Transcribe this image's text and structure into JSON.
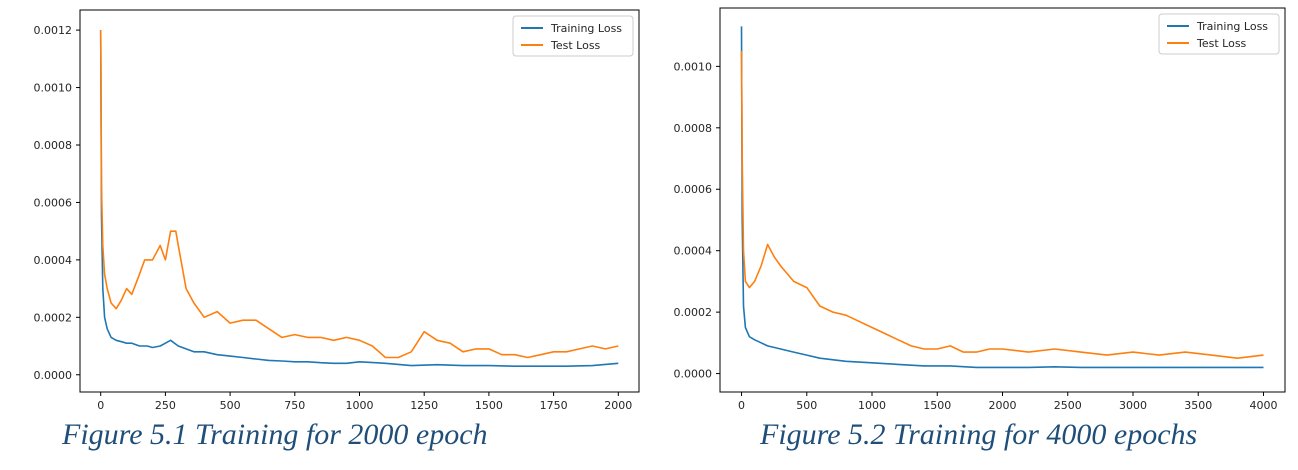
{
  "chart_data": [
    {
      "type": "line",
      "title": "",
      "xlabel": "",
      "ylabel": "",
      "xlim": [
        -80,
        2080
      ],
      "ylim": [
        -6e-05,
        0.00127
      ],
      "xticks": [
        0,
        250,
        500,
        750,
        1000,
        1250,
        1500,
        1750,
        2000
      ],
      "xtick_labels": [
        "0",
        "250",
        "500",
        "750",
        "1000",
        "1250",
        "1500",
        "1750",
        "2000"
      ],
      "yticks": [
        0,
        0.0002,
        0.0004,
        0.0006,
        0.0008,
        0.001,
        0.0012
      ],
      "ytick_labels": [
        "0.0000",
        "0.0002",
        "0.0004",
        "0.0006",
        "0.0008",
        "0.0010",
        "0.0012"
      ],
      "grid": false,
      "legend_position": "top-right",
      "series": [
        {
          "name": "Training Loss",
          "color": "#1f77b4",
          "x": [
            0,
            3,
            8,
            15,
            25,
            40,
            60,
            80,
            100,
            120,
            150,
            180,
            200,
            230,
            250,
            270,
            300,
            330,
            360,
            400,
            450,
            500,
            550,
            600,
            650,
            700,
            750,
            800,
            850,
            900,
            950,
            1000,
            1100,
            1200,
            1300,
            1400,
            1500,
            1600,
            1700,
            1800,
            1900,
            2000
          ],
          "y": [
            0.0012,
            0.00055,
            0.0003,
            0.0002,
            0.00016,
            0.00013,
            0.00012,
            0.000115,
            0.00011,
            0.00011,
            0.0001,
            0.0001,
            9.5e-05,
            0.0001,
            0.00011,
            0.00012,
            0.0001,
            9e-05,
            8e-05,
            8e-05,
            7e-05,
            6.5e-05,
            6e-05,
            5.5e-05,
            5e-05,
            4.8e-05,
            4.5e-05,
            4.5e-05,
            4.2e-05,
            4e-05,
            4e-05,
            4.5e-05,
            4e-05,
            3.2e-05,
            3.5e-05,
            3.2e-05,
            3.2e-05,
            3e-05,
            3e-05,
            3e-05,
            3.2e-05,
            4e-05
          ]
        },
        {
          "name": "Test Loss",
          "color": "#ff7f0e",
          "x": [
            0,
            3,
            8,
            15,
            25,
            40,
            60,
            80,
            100,
            120,
            150,
            170,
            200,
            230,
            250,
            270,
            290,
            300,
            330,
            360,
            400,
            450,
            500,
            550,
            600,
            650,
            700,
            750,
            800,
            850,
            900,
            950,
            1000,
            1050,
            1100,
            1150,
            1200,
            1250,
            1300,
            1350,
            1400,
            1450,
            1500,
            1550,
            1600,
            1650,
            1700,
            1750,
            1800,
            1850,
            1900,
            1950,
            2000
          ],
          "y": [
            0.0012,
            0.00065,
            0.00045,
            0.00035,
            0.0003,
            0.00025,
            0.00023,
            0.00026,
            0.0003,
            0.00028,
            0.00035,
            0.0004,
            0.0004,
            0.00045,
            0.0004,
            0.0005,
            0.0005,
            0.00045,
            0.0003,
            0.00025,
            0.0002,
            0.00022,
            0.00018,
            0.00019,
            0.00019,
            0.00016,
            0.00013,
            0.00014,
            0.00013,
            0.00013,
            0.00012,
            0.00013,
            0.00012,
            0.0001,
            6e-05,
            6e-05,
            8e-05,
            0.00015,
            0.00012,
            0.00011,
            8e-05,
            9e-05,
            9e-05,
            7e-05,
            7e-05,
            6e-05,
            7e-05,
            8e-05,
            8e-05,
            9e-05,
            0.0001,
            9e-05,
            0.0001
          ]
        }
      ]
    },
    {
      "type": "line",
      "title": "",
      "xlabel": "",
      "ylabel": "",
      "xlim": [
        -165,
        4165
      ],
      "ylim": [
        -6e-05,
        0.00119
      ],
      "xticks": [
        0,
        500,
        1000,
        1500,
        2000,
        2500,
        3000,
        3500,
        4000
      ],
      "xtick_labels": [
        "0",
        "500",
        "1000",
        "1500",
        "2000",
        "2500",
        "3000",
        "3500",
        "4000"
      ],
      "yticks": [
        0,
        0.0002,
        0.0004,
        0.0006,
        0.0008,
        0.001
      ],
      "ytick_labels": [
        "0.0000",
        "0.0002",
        "0.0004",
        "0.0006",
        "0.0008",
        "0.0010"
      ],
      "grid": false,
      "legend_position": "top-right",
      "series": [
        {
          "name": "Training Loss",
          "color": "#1f77b4",
          "x": [
            0,
            5,
            15,
            30,
            60,
            100,
            150,
            200,
            300,
            400,
            500,
            600,
            800,
            1000,
            1200,
            1400,
            1600,
            1800,
            2000,
            2200,
            2400,
            2600,
            2800,
            3000,
            3200,
            3400,
            3600,
            3800,
            4000
          ],
          "y": [
            0.00113,
            0.0005,
            0.00022,
            0.00015,
            0.00012,
            0.00011,
            0.0001,
            9e-05,
            8e-05,
            7e-05,
            6e-05,
            5e-05,
            4e-05,
            3.5e-05,
            3e-05,
            2.5e-05,
            2.5e-05,
            2e-05,
            2e-05,
            2e-05,
            2.2e-05,
            2e-05,
            2e-05,
            2e-05,
            2e-05,
            2e-05,
            2e-05,
            2e-05,
            2e-05
          ]
        },
        {
          "name": "Test Loss",
          "color": "#ff7f0e",
          "x": [
            0,
            5,
            15,
            30,
            60,
            100,
            150,
            200,
            250,
            300,
            400,
            500,
            600,
            700,
            800,
            900,
            1000,
            1100,
            1200,
            1300,
            1400,
            1500,
            1600,
            1700,
            1800,
            1900,
            2000,
            2200,
            2400,
            2600,
            2800,
            3000,
            3200,
            3400,
            3600,
            3800,
            4000
          ],
          "y": [
            0.00105,
            0.0007,
            0.0004,
            0.0003,
            0.00028,
            0.0003,
            0.00035,
            0.00042,
            0.00038,
            0.00035,
            0.0003,
            0.00028,
            0.00022,
            0.0002,
            0.00019,
            0.00017,
            0.00015,
            0.00013,
            0.00011,
            9e-05,
            8e-05,
            8e-05,
            9e-05,
            7e-05,
            7e-05,
            8e-05,
            8e-05,
            7e-05,
            8e-05,
            7e-05,
            6e-05,
            7e-05,
            6e-05,
            7e-05,
            6e-05,
            5e-05,
            6e-05
          ]
        }
      ]
    }
  ],
  "captions": {
    "left": "Figure 5.1 Training for 2000 epoch",
    "right": "Figure 5.2 Training for 4000 epochs"
  }
}
